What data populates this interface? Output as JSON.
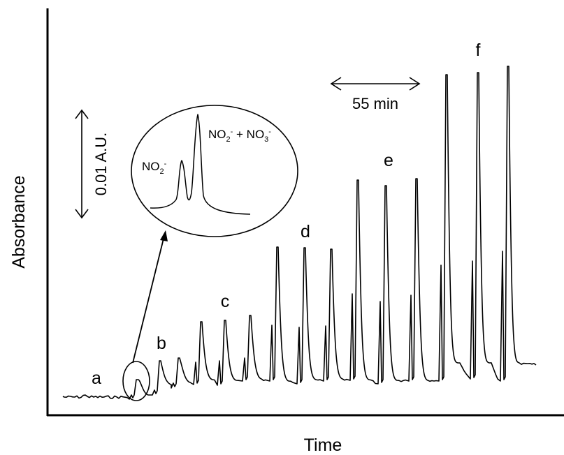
{
  "chart_data": {
    "type": "line",
    "title": "",
    "xlabel": "Time",
    "ylabel": "Absorbance",
    "grid": false,
    "legend": "none",
    "groups": [
      {
        "label": "a"
      },
      {
        "label": "b"
      },
      {
        "label": "c"
      },
      {
        "label": "d"
      },
      {
        "label": "e"
      },
      {
        "label": "f"
      }
    ],
    "scale_bars": {
      "absorbance": "0.01 A.U.",
      "time": "55 min"
    },
    "inset": {
      "peak1": {
        "base": "NO",
        "sub": "2",
        "sup": "-"
      },
      "peak2": {
        "base1": "NO",
        "sub1": "2",
        "sup1": "-",
        "plus": " + ",
        "base2": "NO",
        "sub2": "3",
        "sup2": "-"
      }
    },
    "line_color": "#000000"
  }
}
